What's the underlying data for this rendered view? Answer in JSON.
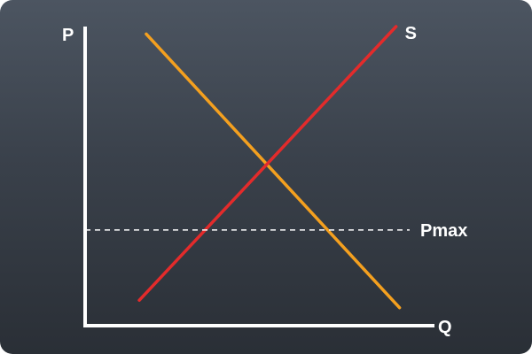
{
  "chart_data": {
    "type": "line",
    "title": "",
    "xlabel": "Q",
    "ylabel": "P",
    "grid": false,
    "xlim": [
      0,
      10
    ],
    "ylim": [
      0,
      10
    ],
    "series": [
      {
        "name": "",
        "role": "demand",
        "color": "#f4a01f",
        "points": [
          [
            1.75,
            9.75
          ],
          [
            9.0,
            0.6
          ]
        ]
      },
      {
        "name": "S",
        "role": "supply",
        "color": "#e32b2b",
        "points": [
          [
            1.55,
            0.85
          ],
          [
            8.9,
            10.0
          ]
        ]
      }
    ],
    "reference_lines": [
      {
        "label": "Pmax",
        "y": 3.2,
        "style": "dashed",
        "color": "#ffffff"
      }
    ]
  }
}
